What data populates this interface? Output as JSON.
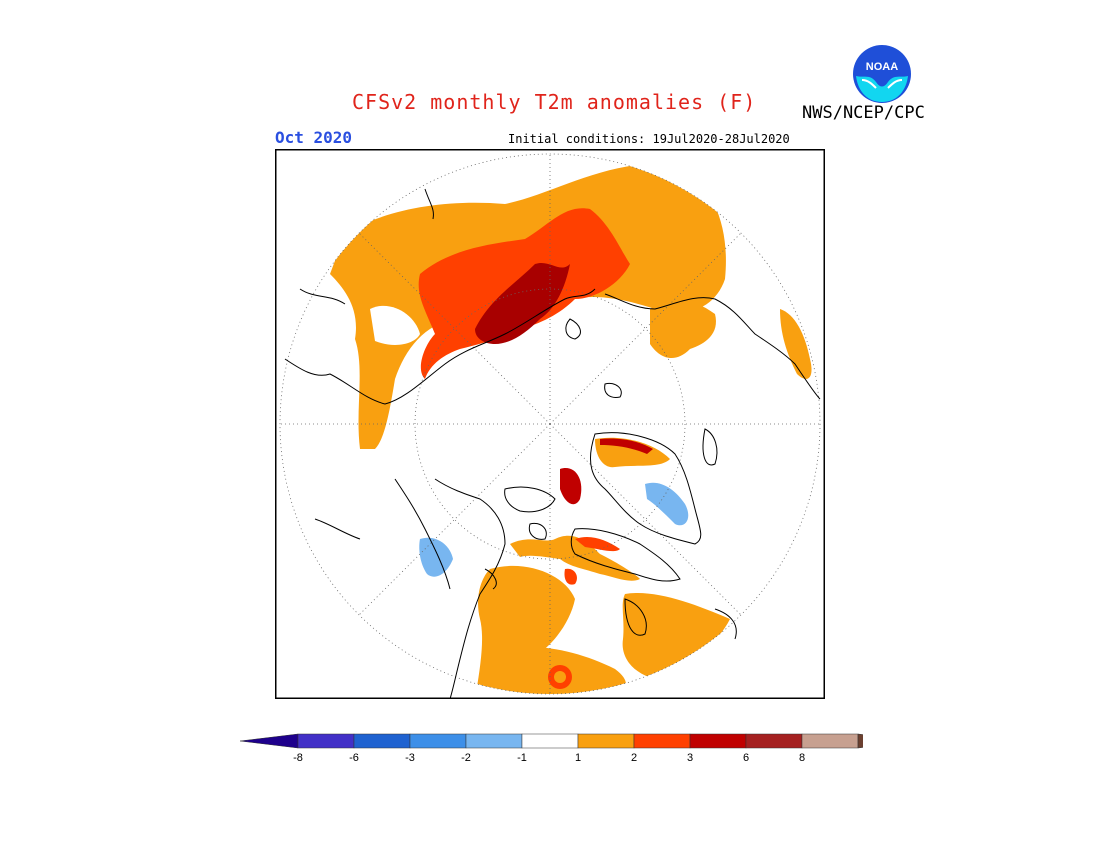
{
  "header": {
    "title": "CFSv2 monthly T2m anomalies (F)",
    "organization": "NWS/NCEP/CPC",
    "logo_text": "NOAA",
    "valid_month": "Oct 2020",
    "initial_conditions": "Initial conditions: 19Jul2020-28Jul2020"
  },
  "map": {
    "projection": "north-polar-stereographic",
    "variable": "2m temperature anomaly",
    "units": "F",
    "graticule": "dotted"
  },
  "legend": {
    "bins": [
      {
        "range": "< -8",
        "color": "#1e008c"
      },
      {
        "range": "-8 to -6",
        "color": "#4230c7"
      },
      {
        "range": "-6 to -3",
        "color": "#1f62d0"
      },
      {
        "range": "-3 to -2",
        "color": "#3d8fe8"
      },
      {
        "range": "-2 to -1",
        "color": "#78b6f0"
      },
      {
        "range": "-1 to 1",
        "color": "#ffffff"
      },
      {
        "range": "1 to 2",
        "color": "#f9a010"
      },
      {
        "range": "2 to 3",
        "color": "#ff4000"
      },
      {
        "range": "3 to 6",
        "color": "#c00000"
      },
      {
        "range": "6 to 8",
        "color": "#a52020"
      },
      {
        "range": "8 to ...",
        "color": "#c7a090"
      },
      {
        "range": "> 8",
        "color": "#6b4030"
      }
    ],
    "tick_labels": [
      "-8",
      "-6",
      "-3",
      "-2",
      "-1",
      "1",
      "2",
      "3",
      "6",
      "8"
    ]
  }
}
